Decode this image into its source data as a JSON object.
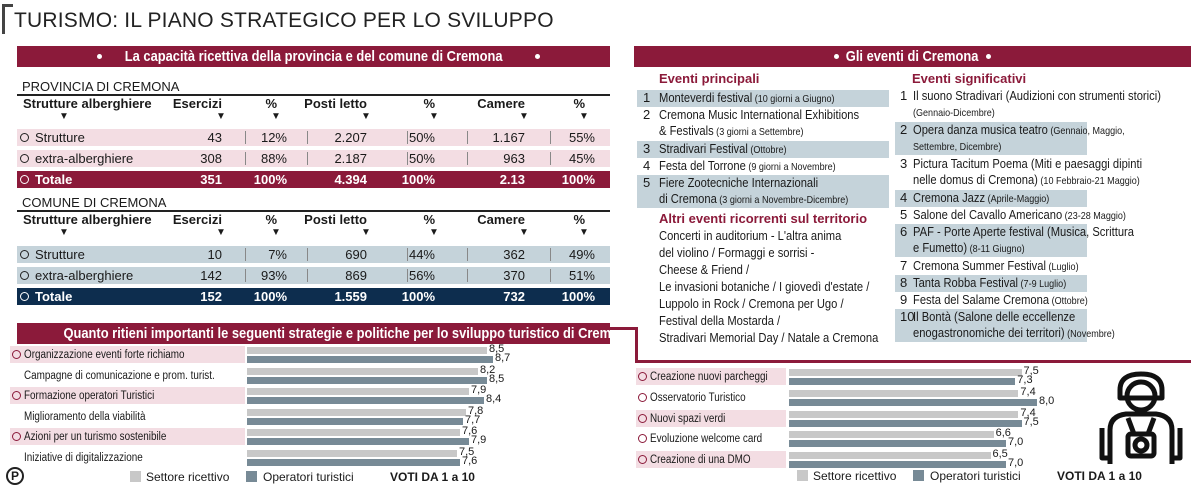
{
  "title": "TURISMO: IL PIANO STRATEGICO PER LO SVILUPPO",
  "capacity": {
    "banner": "La capacità ricettiva della provincia e del comune di Cremona",
    "headers": [
      "Strutture alberghiere",
      "Esercizi",
      "%",
      "Posti letto",
      "%",
      "Camere",
      "%"
    ],
    "province": {
      "label": "PROVINCIA DI CREMONA",
      "rows": [
        {
          "name": "Strutture",
          "cells": [
            "43",
            "12%",
            "2.207",
            "50%",
            "1.167",
            "55%"
          ]
        },
        {
          "name": "extra-alberghiere",
          "cells": [
            "308",
            "88%",
            "2.187",
            "50%",
            "963",
            "45%"
          ]
        },
        {
          "name": "Totale",
          "cells": [
            "351",
            "100%",
            "4.394",
            "100%",
            "2.13",
            "100%"
          ]
        }
      ]
    },
    "city": {
      "label": "COMUNE DI CREMONA",
      "rows": [
        {
          "name": "Strutture",
          "cells": [
            "10",
            "7%",
            "690",
            "44%",
            "362",
            "49%"
          ]
        },
        {
          "name": "extra-alberghiere",
          "cells": [
            "142",
            "93%",
            "869",
            "56%",
            "370",
            "51%"
          ]
        },
        {
          "name": "Totale",
          "cells": [
            "152",
            "100%",
            "1.559",
            "100%",
            "732",
            "100%"
          ]
        }
      ]
    }
  },
  "events": {
    "banner": "Gli eventi di Cremona",
    "main_title": "Eventi principali",
    "main": [
      {
        "n": "1",
        "lines": [
          {
            "t": "Monteverdi festival",
            "s": " (10 giorni a Giugno)"
          }
        ]
      },
      {
        "n": "2",
        "lines": [
          {
            "t": "Cremona Music International Exhibitions",
            "s": ""
          },
          {
            "t": "& Festivals",
            "s": " (3 giorni a Settembre)"
          }
        ]
      },
      {
        "n": "3",
        "lines": [
          {
            "t": "Stradivari Festival",
            "s": " (Ottobre)"
          }
        ]
      },
      {
        "n": "4",
        "lines": [
          {
            "t": "Festa del Torrone",
            "s": " (9 giorni a Novembre)"
          }
        ]
      },
      {
        "n": "5",
        "lines": [
          {
            "t": "Fiere Zootecniche Internazionali",
            "s": ""
          },
          {
            "t": "di Cremona",
            "s": " (3 giorni a Novembre-Dicembre)"
          }
        ]
      }
    ],
    "other_title": "Altri eventi ricorrenti sul territorio",
    "other_lines": [
      "Concerti in auditorium - L'altra anima",
      "del violino / Formaggi e sorrisi -",
      "Cheese & Friend /",
      "Le invasioni botaniche / I giovedì d'estate /",
      "Luppolo in Rock / Cremona per Ugo /",
      "Festival della Mostarda /",
      "Stradivari Memorial Day / Natale a Cremona"
    ],
    "significant_title": "Eventi significativi",
    "significant": [
      {
        "n": "1",
        "lines": [
          {
            "t": "Il suono Stradivari (Audizioni con strumenti storici)",
            "s": ""
          },
          {
            "t": "",
            "s": "(Gennaio-Dicembre)"
          }
        ]
      },
      {
        "n": "2",
        "lines": [
          {
            "t": "Opera danza musica teatro",
            "s": " (Gennaio, Maggio,"
          },
          {
            "t": "",
            "s": "Settembre, Dicembre)"
          }
        ]
      },
      {
        "n": "3",
        "lines": [
          {
            "t": "Pictura Tacitum Poema (Miti e paesaggi dipinti",
            "s": ""
          },
          {
            "t": "nelle domus di Cremona)",
            "s": " (10 Febbraio-21 Maggio)"
          }
        ]
      },
      {
        "n": "4",
        "lines": [
          {
            "t": "Cremona Jazz",
            "s": " (Aprile-Maggio)"
          }
        ]
      },
      {
        "n": "5",
        "lines": [
          {
            "t": "Salone del Cavallo Americano",
            "s": " (23-28 Maggio)"
          }
        ]
      },
      {
        "n": "6",
        "lines": [
          {
            "t": "PAF - Porte Aperte festival (Musica, Scrittura",
            "s": ""
          },
          {
            "t": "e Fumetto)",
            "s": " (8-11 Giugno)"
          }
        ]
      },
      {
        "n": "7",
        "lines": [
          {
            "t": "Cremona Summer Festival",
            "s": " (Luglio)"
          }
        ]
      },
      {
        "n": "8",
        "lines": [
          {
            "t": "Tanta Robba Festival",
            "s": " (7-9 Luglio)"
          }
        ]
      },
      {
        "n": "9",
        "lines": [
          {
            "t": "Festa del Salame Cremona",
            "s": " (Ottobre)"
          }
        ]
      },
      {
        "n": "10",
        "lines": [
          {
            "t": "Il Bontà (Salone delle eccellenze",
            "s": ""
          },
          {
            "t": "enogastronomiche dei territori)",
            "s": " (Novembre)"
          }
        ]
      }
    ]
  },
  "strategies": {
    "banner": "Quanto ritieni importanti le seguenti strategie e politiche per lo sviluppo turistico di Cremona",
    "legend": {
      "a": "Settore ricettivo",
      "b": "Operatori turistici",
      "votes": "VOTI DA  1 a 10"
    },
    "colors": {
      "a": "#c8c8c8",
      "b": "#778a96",
      "accent": "#8b1a3a",
      "highlight": "#f3dde3",
      "blue_row": "#c5d3da",
      "navy": "#0d2d4e"
    }
  },
  "chart_data": [
    {
      "type": "bar",
      "orientation": "horizontal",
      "categories": [
        "Organizzazione eventi forte richiamo",
        "Campagne di comunicazione e prom. turist.",
        "Formazione  operatori Turistici",
        "Miglioramento della viabilità",
        "Azioni per un turismo sostenibile",
        "Iniziative di digitalizzazione"
      ],
      "series": [
        {
          "name": "Settore ricettivo",
          "values": [
            8.5,
            8.2,
            7.9,
            7.8,
            7.6,
            7.5
          ]
        },
        {
          "name": "Operatori turistici",
          "values": [
            8.7,
            8.5,
            8.4,
            7.7,
            7.9,
            7.6
          ]
        }
      ],
      "value_labels": [
        [
          "8,5",
          "8,2",
          "7,9",
          "7,8",
          "7,6",
          "7,5"
        ],
        [
          "8,7",
          "8,5",
          "8,4",
          "7,7",
          "7,9",
          "7,6"
        ]
      ],
      "xlim": [
        0,
        10
      ]
    },
    {
      "type": "bar",
      "orientation": "horizontal",
      "categories": [
        "Creazione nuovi parcheggi",
        "Osservatorio Turistico",
        "Nuovi spazi verdi",
        "Evoluzione welcome card",
        "Creazione di una DMO"
      ],
      "series": [
        {
          "name": "Settore ricettivo",
          "values": [
            7.5,
            7.4,
            7.4,
            6.6,
            6.5
          ]
        },
        {
          "name": "Operatori turistici",
          "values": [
            7.3,
            8.0,
            7.5,
            7.0,
            7.0
          ]
        }
      ],
      "value_labels": [
        [
          "7,5",
          "7,4",
          "7,4",
          "6,6",
          "6,5"
        ],
        [
          "7,3",
          "8,0",
          "7,5",
          "7,0",
          "7,0"
        ]
      ],
      "xlim": [
        0,
        10
      ]
    }
  ]
}
